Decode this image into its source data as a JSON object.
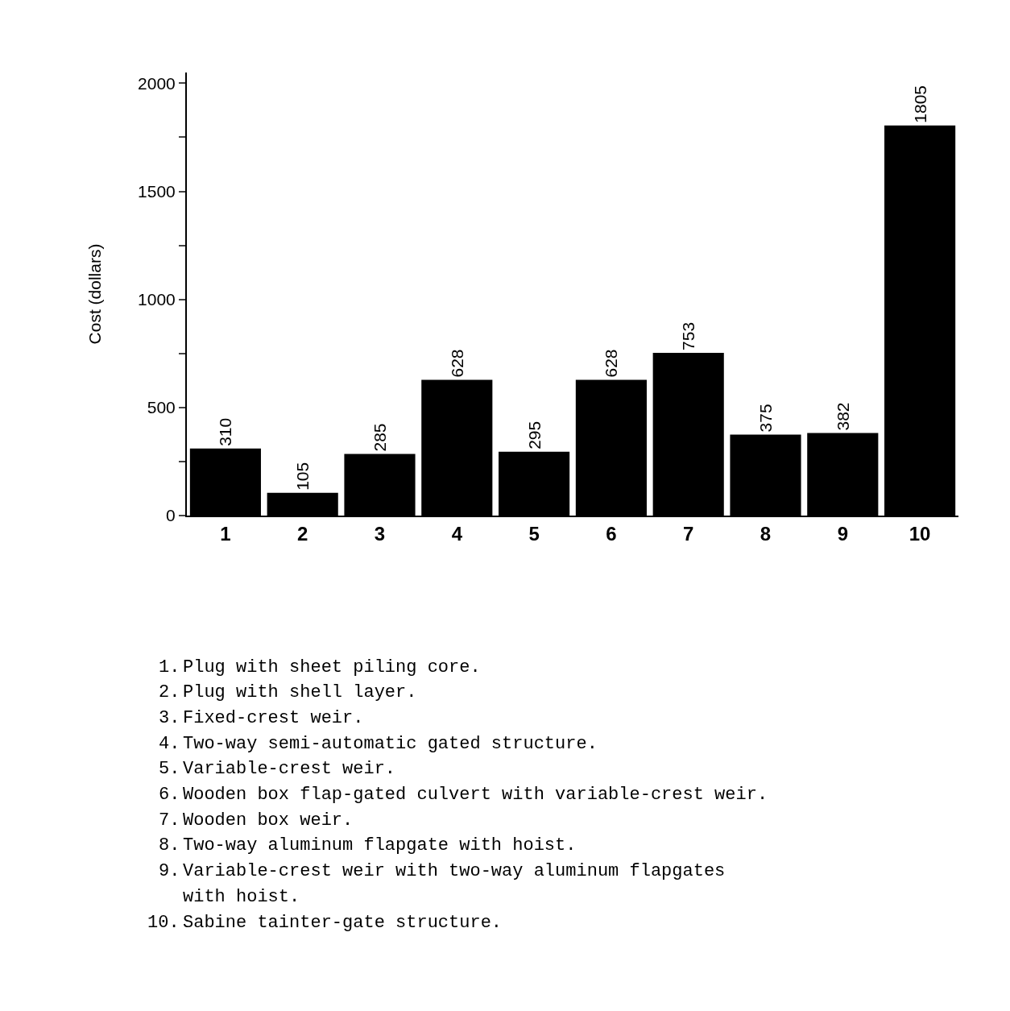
{
  "chart_data": {
    "type": "bar",
    "ylabel": "Cost (dollars)",
    "categories": [
      "1",
      "2",
      "3",
      "4",
      "5",
      "6",
      "7",
      "8",
      "9",
      "10"
    ],
    "values": [
      310,
      105,
      285,
      628,
      295,
      628,
      753,
      375,
      382,
      1805
    ],
    "color": "#000000",
    "data_labels": true,
    "ylim": [
      0,
      2050
    ],
    "yticks": [
      0,
      {
        "value": 250,
        "label": null
      },
      500,
      {
        "value": 750,
        "label": null
      },
      1000,
      {
        "value": 1250,
        "label": null
      },
      1500,
      {
        "value": 1750,
        "label": null
      },
      2000
    ],
    "grid": false,
    "annotations": [
      "1. Plug with sheet piling core.",
      "2. Plug with shell layer.",
      "3. Fixed-crest weir.",
      "4. Two-way semi-automatic gated structure.",
      "5. Variable-crest weir.",
      "6. Wooden box flap-gated culvert with variable-crest weir.",
      "7. Wooden box weir.",
      "8. Two-way aluminum flapgate with hoist.",
      "9. Variable-crest weir with two-way aluminum flapgates with hoist.",
      "10. Sabine tainter-gate structure."
    ]
  }
}
